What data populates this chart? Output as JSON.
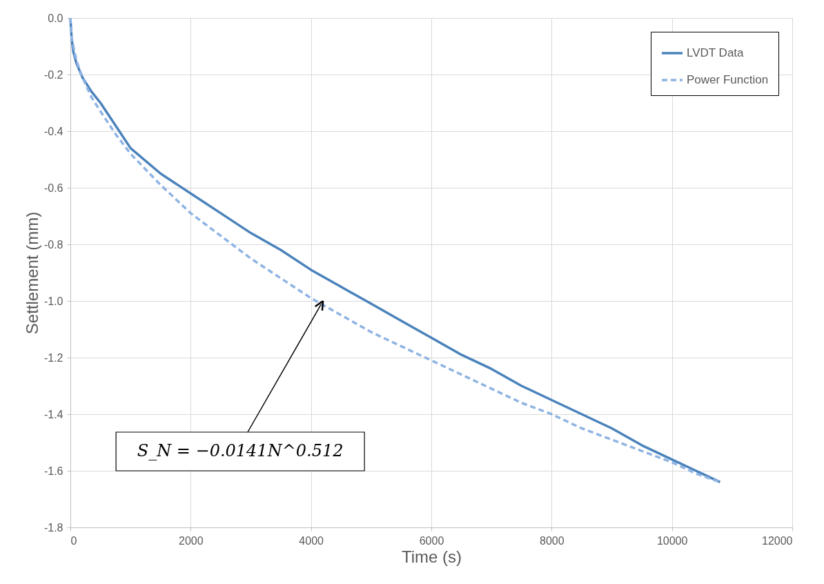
{
  "chart_data": {
    "type": "line",
    "xlabel": "Time (s)",
    "ylabel": "Settlement (mm)",
    "xlim": [
      0,
      12000
    ],
    "xticks": [
      0,
      2000,
      4000,
      6000,
      8000,
      10000,
      12000
    ],
    "ylim": [
      -1.8,
      0
    ],
    "yticks": [
      -1.8,
      -1.6,
      -1.4,
      -1.2,
      {
        "value": -1,
        "label": "-1.0"
      },
      -0.8,
      -0.6,
      -0.4,
      -0.2,
      {
        "value": 0,
        "label": "0.0"
      }
    ],
    "grid": true,
    "legend": "top right",
    "marker": "none",
    "series": [
      {
        "name": "LVDT Data",
        "color": "#4a82bb",
        "line_style": "solid",
        "x": [
          0,
          20,
          50,
          100,
          200,
          350,
          500,
          750,
          1000,
          1500,
          2000,
          2500,
          3000,
          3500,
          4000,
          4500,
          5000,
          5500,
          6000,
          6500,
          7000,
          7500,
          8000,
          8500,
          9000,
          9500,
          10000,
          10400,
          10800
        ],
        "values": [
          0,
          -0.07,
          -0.12,
          -0.16,
          -0.21,
          -0.26,
          -0.3,
          -0.38,
          -0.46,
          -0.55,
          -0.62,
          -0.69,
          -0.76,
          -0.82,
          -0.89,
          -0.95,
          -1.01,
          -1.07,
          -1.13,
          -1.19,
          -1.24,
          -1.3,
          -1.35,
          -1.4,
          -1.45,
          -1.51,
          -1.56,
          -1.6,
          -1.64
        ]
      },
      {
        "name": "Power Function",
        "color": "#8fb4e3",
        "line_style": "dashed",
        "x": [
          0,
          20,
          50,
          100,
          200,
          350,
          500,
          750,
          1000,
          1500,
          2000,
          2500,
          3000,
          3500,
          4000,
          4500,
          5000,
          5500,
          6000,
          6500,
          7000,
          7500,
          8000,
          8500,
          9000,
          9500,
          10000,
          10400,
          10800
        ],
        "values": [
          0,
          -0.07,
          -0.1,
          -0.15,
          -0.21,
          -0.28,
          -0.33,
          -0.41,
          -0.48,
          -0.59,
          -0.69,
          -0.77,
          -0.85,
          -0.92,
          -0.99,
          -1.05,
          -1.11,
          -1.16,
          -1.21,
          -1.26,
          -1.31,
          -1.36,
          -1.4,
          -1.45,
          -1.49,
          -1.53,
          -1.57,
          -1.61,
          -1.64
        ]
      }
    ],
    "annotations": [
      {
        "text": "S_N = −0.0141N^0.512",
        "x": 4200,
        "y": -1.0
      }
    ]
  }
}
